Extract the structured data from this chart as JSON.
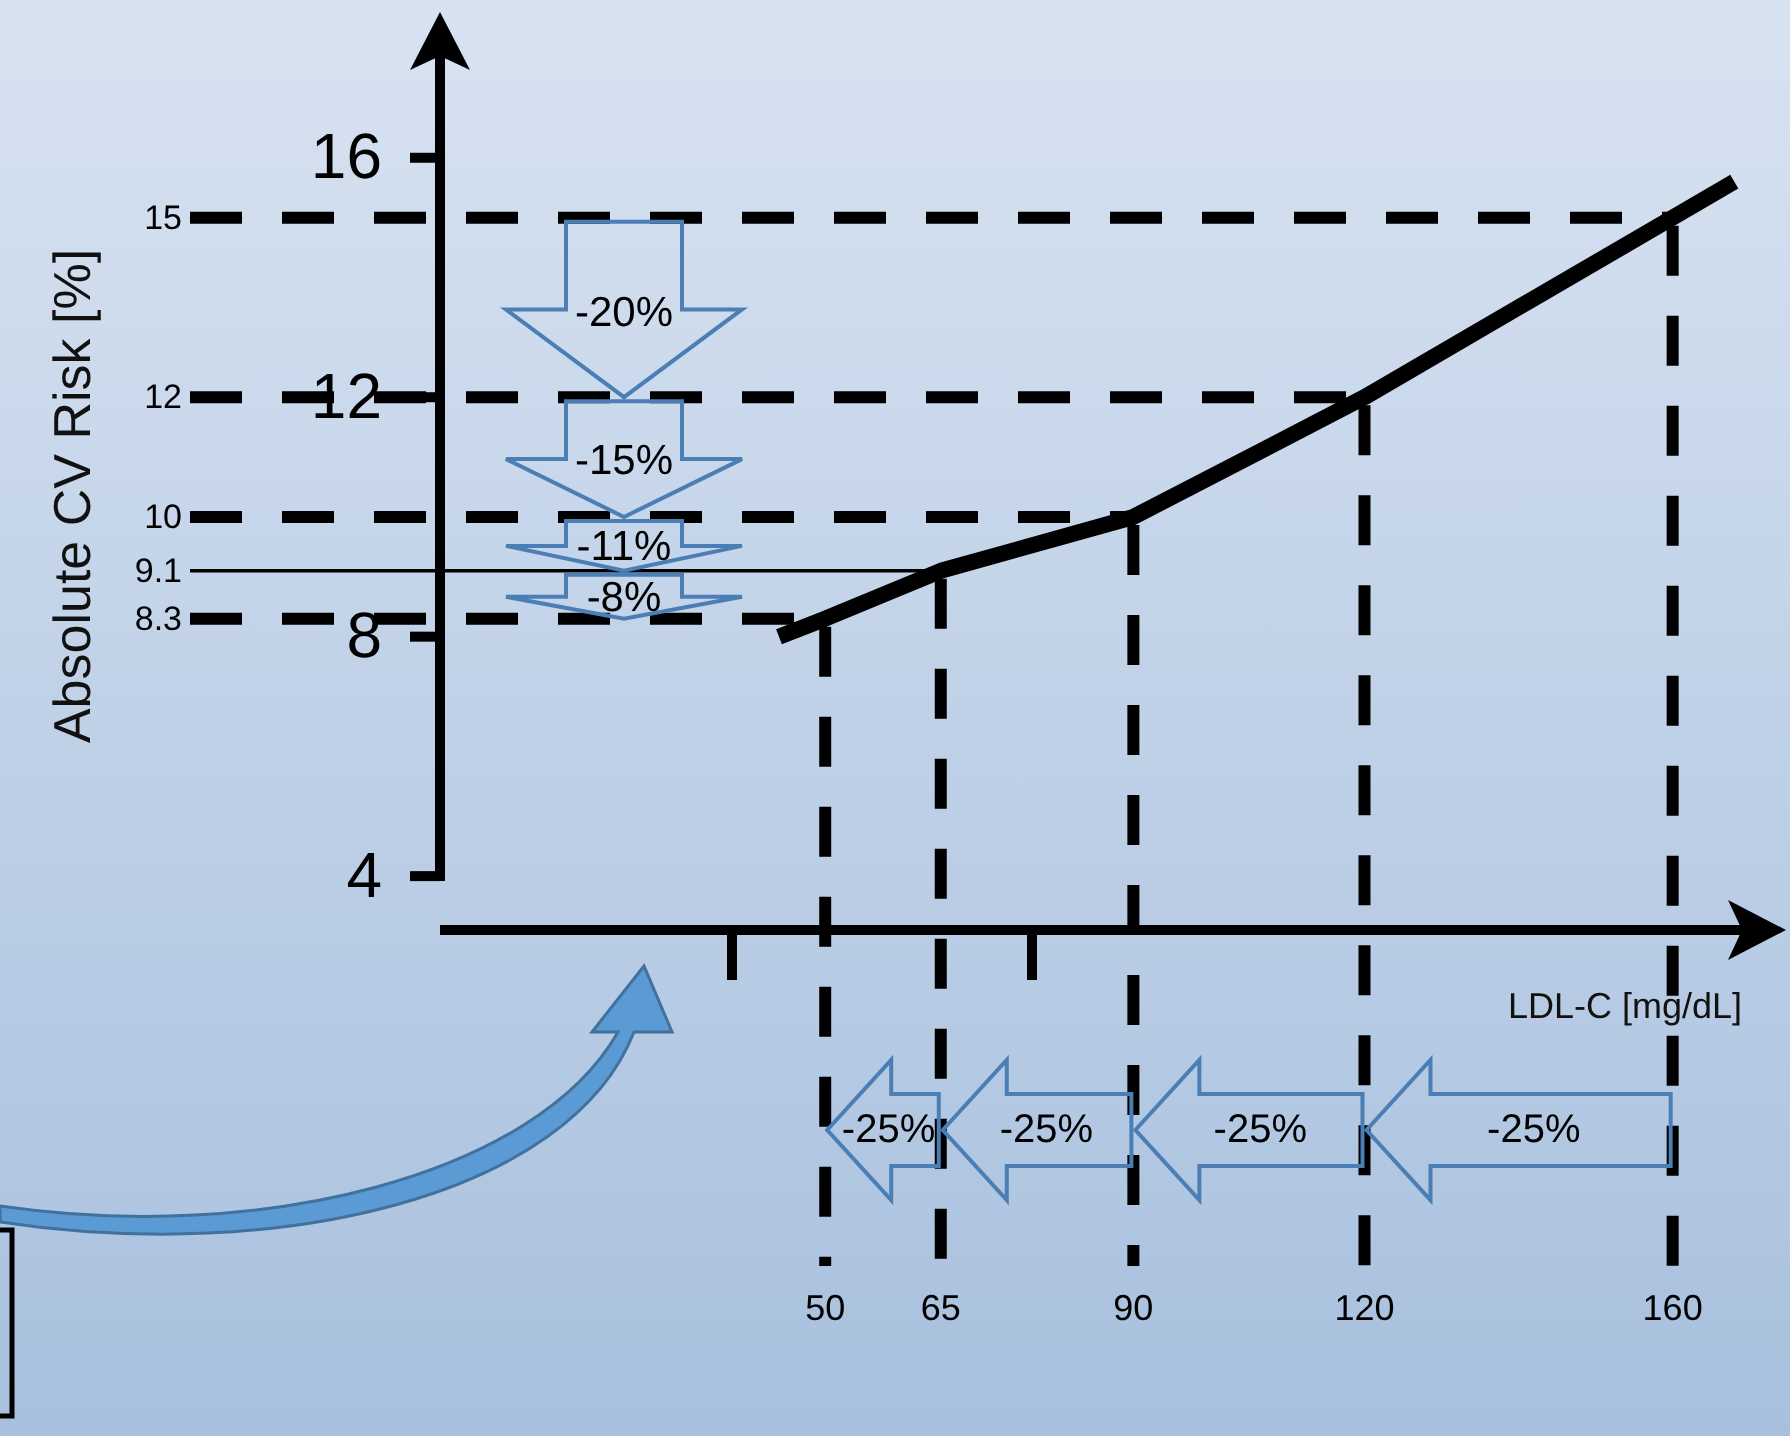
{
  "chart_data": {
    "type": "line",
    "xlabel": "LDL-C [mg/dL]",
    "ylabel": "Absolute CV Risk [%]",
    "x": [
      44,
      50,
      65,
      90,
      120,
      160,
      168
    ],
    "series": [
      {
        "color": "#000000",
        "values": [
          8,
          8.3,
          9.1,
          10,
          12,
          15,
          15.6
        ]
      }
    ],
    "xlim": [
      0,
      169
    ],
    "ylim": [
      3.1,
      17.7
    ],
    "yticks": [
      4,
      8,
      12,
      16
    ],
    "tick_labels": "y",
    "ref_lines": [
      {
        "axis": "y",
        "value": 15,
        "label": "15",
        "line_style": "dashed",
        "color": "#000000"
      },
      {
        "axis": "y",
        "value": 12,
        "label": "12",
        "line_style": "dashed",
        "color": "#000000"
      },
      {
        "axis": "y",
        "value": 10,
        "label": "10",
        "line_style": "dashed",
        "color": "#000000"
      },
      {
        "axis": "y",
        "value": 9.1,
        "label": "9.1",
        "line_style": "solid",
        "color": "#000000"
      },
      {
        "axis": "y",
        "value": 8.3,
        "label": "8.3",
        "line_style": "dashed",
        "color": "#000000"
      },
      {
        "axis": "x",
        "value": 50,
        "label": "50",
        "line_style": "dashed",
        "color": "#000000"
      },
      {
        "axis": "x",
        "value": 65,
        "label": "65",
        "line_style": "dashed",
        "color": "#000000"
      },
      {
        "axis": "x",
        "value": 90,
        "label": "90",
        "line_style": "dashed",
        "color": "#000000"
      },
      {
        "axis": "x",
        "value": 120,
        "label": "120",
        "line_style": "dashed",
        "color": "#000000"
      },
      {
        "axis": "x",
        "value": 160,
        "label": "160",
        "line_style": "dashed",
        "color": "#000000"
      }
    ],
    "annotations": [
      "-20%",
      "-15%",
      "-11%",
      "-8%",
      "-25%",
      "-25%",
      "-25%",
      "-25%"
    ]
  }
}
